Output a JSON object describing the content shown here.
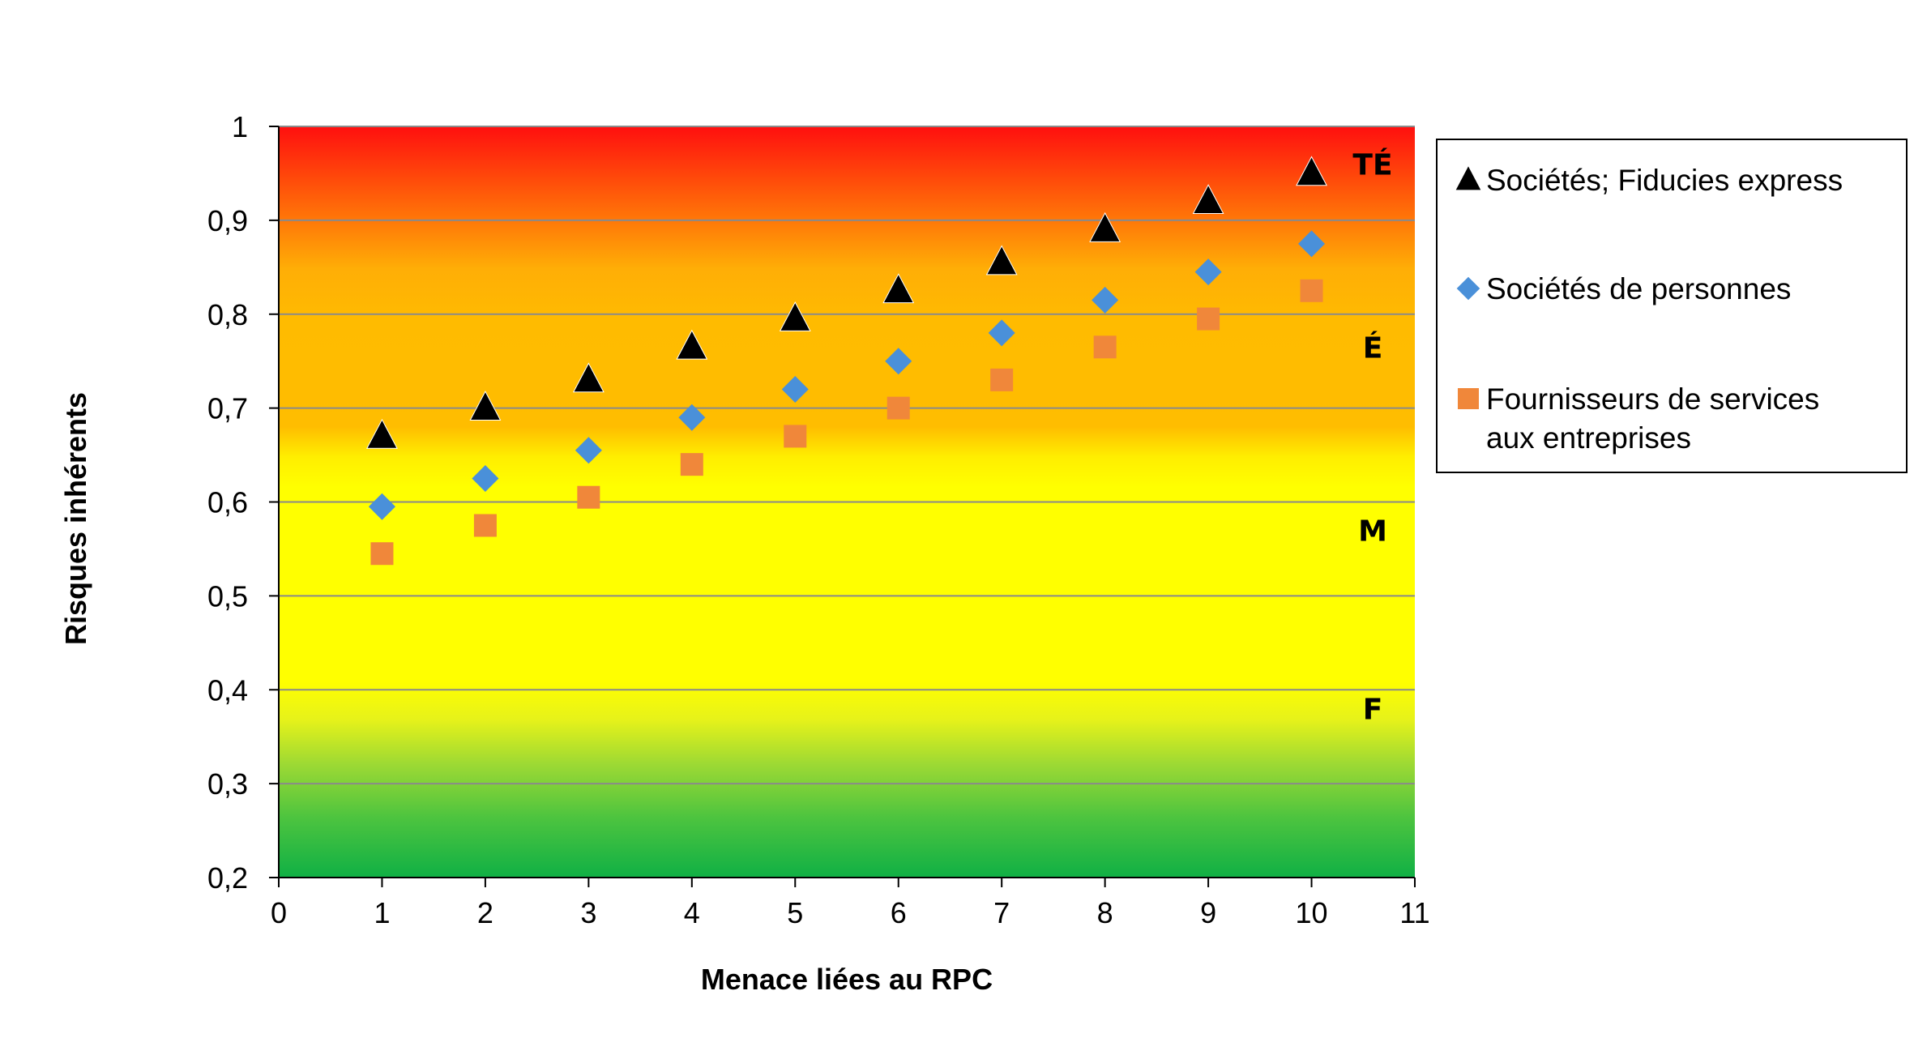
{
  "chart_data": {
    "type": "scatter",
    "title": "",
    "xlabel": "Menace liées au RPC",
    "ylabel": "Risques inhérents",
    "xlim": [
      0,
      11
    ],
    "ylim": [
      0.2,
      1
    ],
    "x_ticks": [
      "0",
      "1",
      "2",
      "3",
      "4",
      "5",
      "6",
      "7",
      "8",
      "9",
      "10",
      "11"
    ],
    "y_ticks": [
      "0,2",
      "0,3",
      "0,4",
      "0,5",
      "0,6",
      "0,7",
      "0,8",
      "0,9",
      "1"
    ],
    "grid": "horizontal",
    "legend_position": "right",
    "background": "vertical gradient green (low) to yellow to orange to red (high)",
    "zones": [
      {
        "label": "TÉ",
        "y": 0.96
      },
      {
        "label": "É",
        "y": 0.765
      },
      {
        "label": "M",
        "y": 0.57
      },
      {
        "label": "F",
        "y": 0.38
      }
    ],
    "series": [
      {
        "name": "Sociétés; Fiducies express",
        "marker": "triangle",
        "color": "#000000",
        "x": [
          1,
          2,
          3,
          4,
          5,
          6,
          7,
          8,
          9,
          10
        ],
        "y": [
          0.67,
          0.7,
          0.73,
          0.765,
          0.795,
          0.825,
          0.855,
          0.89,
          0.92,
          0.95
        ]
      },
      {
        "name": "Sociétés de personnes",
        "marker": "diamond",
        "color": "#4a90d9",
        "x": [
          1,
          2,
          3,
          4,
          5,
          6,
          7,
          8,
          9,
          10
        ],
        "y": [
          0.595,
          0.625,
          0.655,
          0.69,
          0.72,
          0.75,
          0.78,
          0.815,
          0.845,
          0.875
        ]
      },
      {
        "name": "Fournisseurs de services aux entreprises",
        "name_lines": [
          "Fournisseurs de services",
          "aux entreprises"
        ],
        "marker": "square",
        "color": "#f0873a",
        "x": [
          1,
          2,
          3,
          4,
          5,
          6,
          7,
          8,
          9,
          10
        ],
        "y": [
          0.545,
          0.575,
          0.605,
          0.64,
          0.67,
          0.7,
          0.73,
          0.765,
          0.795,
          0.825
        ]
      }
    ]
  }
}
